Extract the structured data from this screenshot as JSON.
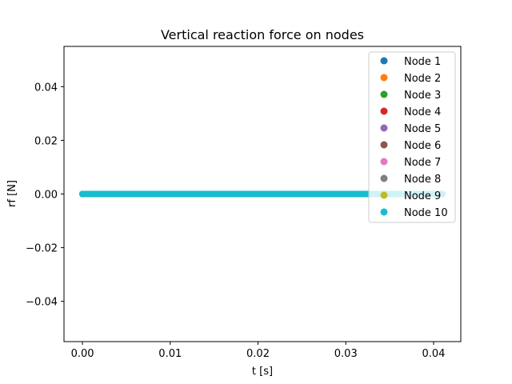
{
  "chart_data": {
    "type": "scatter",
    "title": "Vertical reaction force on nodes",
    "xlabel": "t [s]",
    "ylabel": "rf [N]",
    "xlim": [
      -0.0021,
      0.0431
    ],
    "ylim": [
      -0.055,
      0.055
    ],
    "xticks": [
      0.0,
      0.01,
      0.02,
      0.03,
      0.04
    ],
    "xtick_labels": [
      "0.00",
      "0.01",
      "0.02",
      "0.03",
      "0.04"
    ],
    "yticks": [
      -0.04,
      -0.02,
      0.0,
      0.02,
      0.04
    ],
    "ytick_labels": [
      "−0.04",
      "−0.02",
      "0.00",
      "0.02",
      "0.04"
    ],
    "grid": false,
    "legend_position": "top-right",
    "x_range": [
      0.0,
      0.041
    ],
    "x_step": 0.0001,
    "series": [
      {
        "name": "Node 1",
        "color": "#1f77b4",
        "y_value": 0.0
      },
      {
        "name": "Node 2",
        "color": "#ff7f0e",
        "y_value": 0.0
      },
      {
        "name": "Node 3",
        "color": "#2ca02c",
        "y_value": 0.0
      },
      {
        "name": "Node 4",
        "color": "#d62728",
        "y_value": 0.0
      },
      {
        "name": "Node 5",
        "color": "#9467bd",
        "y_value": 0.0
      },
      {
        "name": "Node 6",
        "color": "#8c564b",
        "y_value": 0.0
      },
      {
        "name": "Node 7",
        "color": "#e377c2",
        "y_value": 0.0
      },
      {
        "name": "Node 8",
        "color": "#7f7f7f",
        "y_value": 0.0
      },
      {
        "name": "Node 9",
        "color": "#bcbd22",
        "y_value": 0.0
      },
      {
        "name": "Node 10",
        "color": "#17becf",
        "y_value": 0.0
      }
    ]
  }
}
